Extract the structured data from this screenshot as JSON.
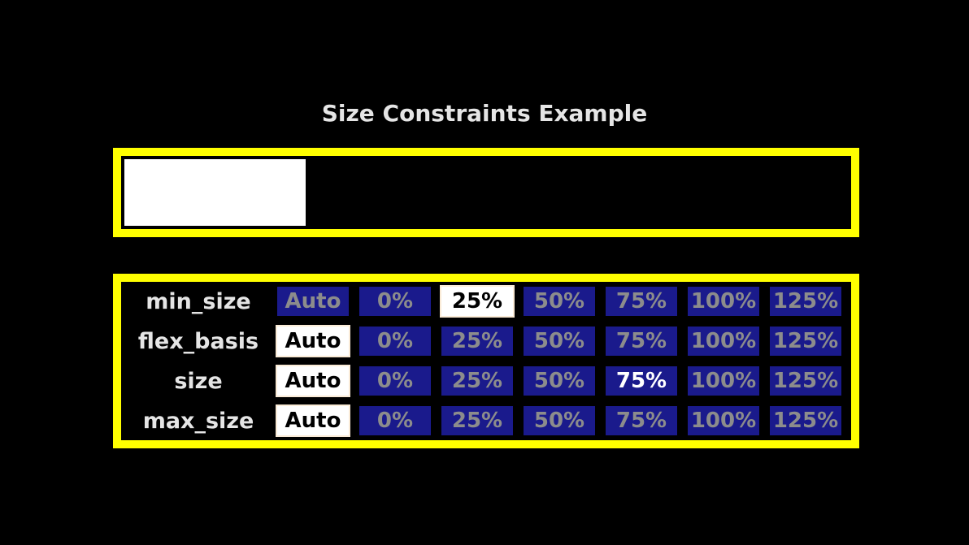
{
  "title": "Size Constraints Example",
  "colors": {
    "background": "#000000",
    "panel_border": "#ffff00",
    "button_normal_bg": "#1a1a8c",
    "button_normal_text": "#8c8c8c",
    "button_active_bg": "#ffffff",
    "button_active_text": "#000000",
    "button_active_border": "#faebd7",
    "button_hovered_text": "#ffffff",
    "label_text": "#e5e5e5",
    "bar_fill": "#ffffff"
  },
  "bar": {
    "fill_percent": 25
  },
  "table": {
    "rows": [
      {
        "label": "min_size",
        "buttons": [
          {
            "label": "Auto",
            "state": "normal"
          },
          {
            "label": "0%",
            "state": "normal"
          },
          {
            "label": "25%",
            "state": "active"
          },
          {
            "label": "50%",
            "state": "normal"
          },
          {
            "label": "75%",
            "state": "normal"
          },
          {
            "label": "100%",
            "state": "normal"
          },
          {
            "label": "125%",
            "state": "normal"
          }
        ]
      },
      {
        "label": "flex_basis",
        "buttons": [
          {
            "label": "Auto",
            "state": "active"
          },
          {
            "label": "0%",
            "state": "normal"
          },
          {
            "label": "25%",
            "state": "normal"
          },
          {
            "label": "50%",
            "state": "normal"
          },
          {
            "label": "75%",
            "state": "normal"
          },
          {
            "label": "100%",
            "state": "normal"
          },
          {
            "label": "125%",
            "state": "normal"
          }
        ]
      },
      {
        "label": "size",
        "buttons": [
          {
            "label": "Auto",
            "state": "active"
          },
          {
            "label": "0%",
            "state": "normal"
          },
          {
            "label": "25%",
            "state": "normal"
          },
          {
            "label": "50%",
            "state": "normal"
          },
          {
            "label": "75%",
            "state": "hovered"
          },
          {
            "label": "100%",
            "state": "normal"
          },
          {
            "label": "125%",
            "state": "normal"
          }
        ]
      },
      {
        "label": "max_size",
        "buttons": [
          {
            "label": "Auto",
            "state": "active"
          },
          {
            "label": "0%",
            "state": "normal"
          },
          {
            "label": "25%",
            "state": "normal"
          },
          {
            "label": "50%",
            "state": "normal"
          },
          {
            "label": "75%",
            "state": "normal"
          },
          {
            "label": "100%",
            "state": "normal"
          },
          {
            "label": "125%",
            "state": "normal"
          }
        ]
      }
    ]
  }
}
